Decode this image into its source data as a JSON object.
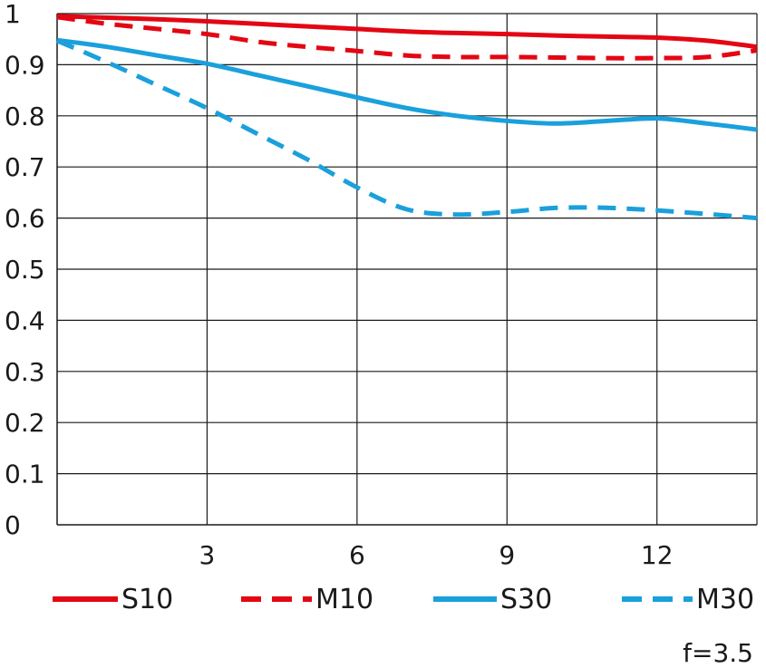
{
  "chart_data": {
    "type": "line",
    "title": "",
    "xlabel": "",
    "ylabel": "",
    "xlim": [
      0,
      14
    ],
    "ylim": [
      0,
      1
    ],
    "x_ticks": [
      "3",
      "6",
      "9",
      "12"
    ],
    "y_ticks": [
      "0",
      "0.1",
      "0.2",
      "0.3",
      "0.4",
      "0.5",
      "0.6",
      "0.7",
      "0.8",
      "0.9",
      "1"
    ],
    "grid": true,
    "legend_position": "bottom",
    "x": [
      0,
      1,
      2,
      3,
      4,
      5,
      6,
      7,
      8,
      9,
      10,
      11,
      12,
      13,
      14
    ],
    "series": [
      {
        "name": "S10",
        "color": "#e30613",
        "dash": "solid",
        "values": [
          0.995,
          0.992,
          0.989,
          0.985,
          0.98,
          0.975,
          0.97,
          0.965,
          0.962,
          0.96,
          0.957,
          0.955,
          0.953,
          0.947,
          0.935
        ]
      },
      {
        "name": "M10",
        "color": "#e30613",
        "dash": "dashed",
        "values": [
          0.993,
          0.98,
          0.97,
          0.96,
          0.945,
          0.935,
          0.927,
          0.918,
          0.915,
          0.915,
          0.914,
          0.913,
          0.913,
          0.915,
          0.928
        ]
      },
      {
        "name": "S30",
        "color": "#1aa0dc",
        "dash": "solid",
        "values": [
          0.948,
          0.935,
          0.918,
          0.902,
          0.88,
          0.858,
          0.836,
          0.815,
          0.8,
          0.79,
          0.785,
          0.79,
          0.795,
          0.785,
          0.773
        ]
      },
      {
        "name": "M30",
        "color": "#1aa0dc",
        "dash": "dashed",
        "values": [
          0.947,
          0.905,
          0.86,
          0.815,
          0.765,
          0.715,
          0.66,
          0.617,
          0.607,
          0.612,
          0.62,
          0.62,
          0.615,
          0.608,
          0.6
        ]
      }
    ]
  },
  "footer": {
    "aperture": "f=3.5"
  }
}
